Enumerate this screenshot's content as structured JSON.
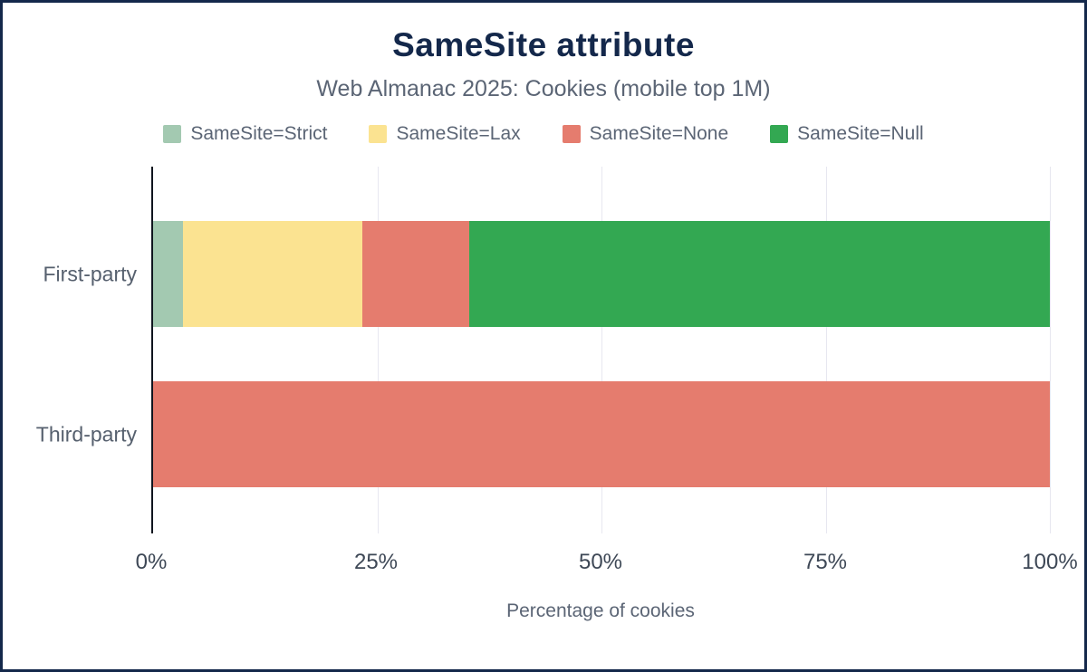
{
  "header": {
    "title": "SameSite attribute",
    "subtitle": "Web Almanac 2025: Cookies (mobile top 1M)"
  },
  "chart_data": {
    "type": "bar",
    "orientation": "horizontal",
    "stacked": true,
    "title": "SameSite attribute",
    "subtitle": "Web Almanac 2025: Cookies (mobile top 1M)",
    "xlabel": "Percentage of cookies",
    "categories": [
      "First-party",
      "Third-party"
    ],
    "series": [
      {
        "name": "SameSite=Strict",
        "color": "#a3c9b1",
        "values": [
          3.3,
          0
        ]
      },
      {
        "name": "SameSite=Lax",
        "color": "#fbe391",
        "values": [
          20.0,
          0
        ]
      },
      {
        "name": "SameSite=None",
        "color": "#e57c6e",
        "values": [
          12.0,
          100
        ]
      },
      {
        "name": "SameSite=Null",
        "color": "#33a852",
        "values": [
          64.7,
          0
        ]
      }
    ],
    "x_ticks": [
      "0%",
      "25%",
      "50%",
      "75%",
      "100%"
    ],
    "xlim": [
      0,
      100
    ],
    "grid": "vertical",
    "legend_position": "top"
  }
}
